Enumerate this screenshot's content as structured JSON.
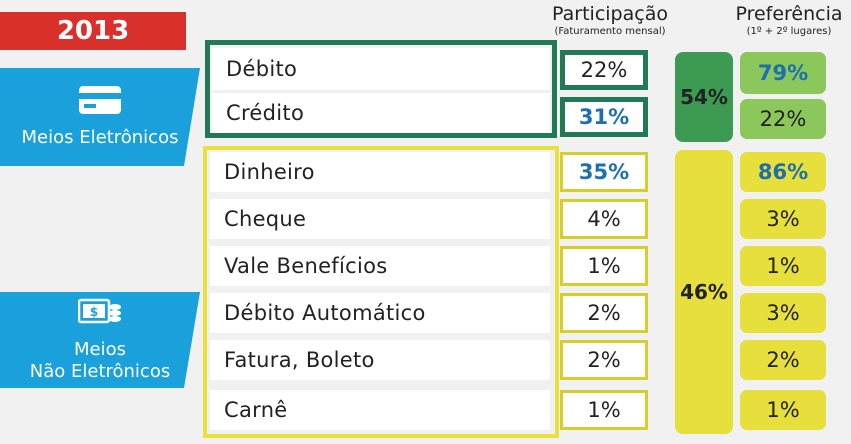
{
  "year": "2013",
  "categories": {
    "eletronicos": "Meios Eletrônicos",
    "nao_eletronicos_line1": "Meios",
    "nao_eletronicos_line2": "Não Eletrônicos"
  },
  "headers": {
    "participacao": "Participação",
    "participacao_sub": "(Faturamento mensal)",
    "preferencia": "Preferência",
    "preferencia_sub": "(1º + 2º lugares)"
  },
  "chart_data": {
    "type": "table",
    "columns": [
      "Participação",
      "Preferência"
    ],
    "rows": [
      {
        "label": "Débito",
        "participacao": "22%",
        "preferencia": "79%",
        "group": "eletronicos"
      },
      {
        "label": "Crédito",
        "participacao": "31%",
        "preferencia": "22%",
        "group": "eletronicos"
      },
      {
        "label": "Dinheiro",
        "participacao": "35%",
        "preferencia": "86%",
        "group": "nao_eletronicos"
      },
      {
        "label": "Cheque",
        "participacao": "4%",
        "preferencia": "3%",
        "group": "nao_eletronicos"
      },
      {
        "label": "Vale Benefícios",
        "participacao": "1%",
        "preferencia": "1%",
        "group": "nao_eletronicos"
      },
      {
        "label": "Débito Automático",
        "participacao": "2%",
        "preferencia": "3%",
        "group": "nao_eletronicos"
      },
      {
        "label": "Fatura, Boleto",
        "participacao": "2%",
        "preferencia": "2%",
        "group": "nao_eletronicos"
      },
      {
        "label": "Carnê",
        "participacao": "1%",
        "preferencia": "1%",
        "group": "nao_eletronicos"
      }
    ],
    "group_totals": {
      "eletronicos": "54%",
      "nao_eletronicos": "46%"
    }
  },
  "colors": {
    "year_bg": "#d9302b",
    "category_bg": "#1aa0da",
    "green_border": "#217a55",
    "yellow_border": "#ece03c",
    "highlight_text": "#1e6fae"
  }
}
